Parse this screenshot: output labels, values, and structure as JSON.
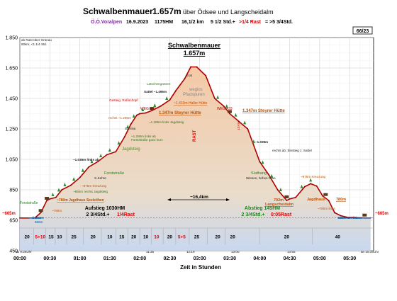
{
  "header": {
    "title_main": "Schwalbenmauer",
    "title_alt": "1.657m",
    "title_rest": "über Ödsee und Langscheidalm",
    "region": "Ö.Ö.Voralpen",
    "date": "16.9.2023",
    "hm": "1175HM",
    "dist": "16,1/2 km",
    "times_prefix": "5 1/2 Std.+",
    "times_rest": ">1/4 Rast",
    "times_total": "= >5 3/4Std.",
    "page_badge": "66/23"
  },
  "legend_note": [
    "ab Rast über Grünau",
    "80km, <1.1/4 Std."
  ],
  "summit": {
    "name": "Schwalbenmauer",
    "alt": "1.657m"
  },
  "summary": {
    "ascent_title": "Aufstieg 1030HM",
    "ascent_time_prefix": "2 3/4Std.+",
    "ascent_time_rast": "1/4Rast",
    "descent_title": "Abstieg 145HM",
    "descent_time_prefix": "2 3/4Std.+",
    "descent_time_rast": "0:05Rast",
    "distance": "~16,4km"
  },
  "labels": {
    "rast": "RAST",
    "grat": "Grat",
    "weglos": "weglos",
    "pfadspuren": "Pfadspuren",
    "jagdsteig": "Jagdsteig",
    "forststrasse": "Forststraße",
    "forststrasse2": "Forststraße",
    "suedhang": "Südhang",
    "wiesen": "Wiesen, hohes Gras",
    "jagdhaus": "Jagdhaus",
    "lat": "Latschengassen",
    "saltel": "Sattel ~1.495m",
    "wieg": "WEG 433",
    "wieg2": "WEG 433",
    "gesteig": "Gesteig. Roßschopf",
    "huette1": "~1.410m Haller Hütte",
    "steyrer1": "1.347m Steyrer Hütte",
    "steyrer2": "1.347m Steyrer Hütte",
    "s1285": "~1.285m links Jagdsteig",
    "rechts1285": "rechts ~1.285m",
    "s1290": "~1.290m links ab",
    "s1290b": "Forststraße ganz kurz",
    "samisa": "Samisa",
    "kehre": "S-Kehre",
    "s1035l": "~1.035m links ab",
    "s1035r": "~1.035m",
    "rechts_ab": "rechts ab: Einstieg z. Sattel",
    "s875": "~875m Kreuzung",
    "s875b": "~875m Kreuzung",
    "s850": "~850m rechts Jagdsteig",
    "jagdhaus_seeleithen": "~780m Jagdhaus Seeleithen",
    "s780": "~780m",
    "s780r": "780m",
    "s792": "792m",
    "langscheid": "Langscheidalm",
    "wlinks": "~780m links",
    "start_left": "~665m",
    "start_right": "~665m",
    "oedsee_left": "Ödsee",
    "oedsee_left2": "665m",
    "oedsee_right": "665m Gr. Ödsee",
    "forst_left": "Forststraße",
    "start_time": "ab 9:25Uhr",
    "end_time": "an 15:16Uhr",
    "t1135": "11:35",
    "t1219": "12:19",
    "t1300": "13:00",
    "t1355": "13:55",
    "x_axis_title": "Zeit in Stunden"
  },
  "segments": [
    "20",
    "5+10",
    "15",
    "10",
    "25",
    "20",
    "10",
    "15",
    "20",
    "10",
    "10",
    "20",
    "5+5",
    "25",
    "20",
    "20",
    "20",
    "40"
  ],
  "colors": {
    "profile": "#b00000",
    "fill_top": "#f5c9a6",
    "fill_bottom": "#c8d8f0",
    "title_purple": "#7a2aa0",
    "red": "#e00000",
    "green": "#1a8a1a",
    "orange": "#c06000",
    "blue_line": "#0070c0"
  },
  "chart_data": {
    "type": "area",
    "title": "Schwalbenmauer 1.657m über Ödsee und Langscheidalm",
    "xlabel": "Zeit in Stunden",
    "ylabel": "",
    "ylim": [
      450,
      1850
    ],
    "xlim": [
      0,
      5.9
    ],
    "y_ticks": [
      450,
      650,
      850,
      1050,
      1250,
      1450,
      1650,
      1850
    ],
    "y_tick_labels": [
      "450",
      "650",
      "850",
      "1.050",
      "1.250",
      "1.450",
      "1.650",
      "1.850"
    ],
    "x_ticks": [
      0,
      0.5,
      1,
      1.5,
      2,
      2.5,
      3,
      3.5,
      4,
      4.5,
      5,
      5.5
    ],
    "x_tick_labels": [
      "00:00",
      "00:30",
      "01:00",
      "01:30",
      "02:00",
      "02:30",
      "03:00",
      "03:30",
      "04:00",
      "04:30",
      "05:00",
      "05:30"
    ],
    "grid": true,
    "x": [
      0,
      0.25,
      0.35,
      0.45,
      0.5,
      0.6,
      0.7,
      0.85,
      1.0,
      1.15,
      1.3,
      1.45,
      1.6,
      1.75,
      1.85,
      1.95,
      2.0,
      2.1,
      2.2,
      2.35,
      2.5,
      2.6,
      2.75,
      2.85,
      2.95,
      3.1,
      3.25,
      3.4,
      3.5,
      3.65,
      3.8,
      4.0,
      4.15,
      4.3,
      4.45,
      4.5,
      4.6,
      4.75,
      4.85,
      4.95,
      5.05,
      5.15,
      5.25,
      5.35,
      5.45,
      5.6,
      5.75,
      5.85
    ],
    "values": [
      665,
      665,
      700,
      780,
      790,
      800,
      850,
      880,
      930,
      1000,
      1035,
      1080,
      1100,
      1200,
      1280,
      1340,
      1350,
      1355,
      1370,
      1400,
      1440,
      1500,
      1580,
      1657,
      1657,
      1600,
      1450,
      1400,
      1350,
      1300,
      1250,
      1035,
      950,
      850,
      780,
      790,
      800,
      870,
      890,
      875,
      810,
      780,
      700,
      680,
      670,
      668,
      665,
      665
    ]
  }
}
